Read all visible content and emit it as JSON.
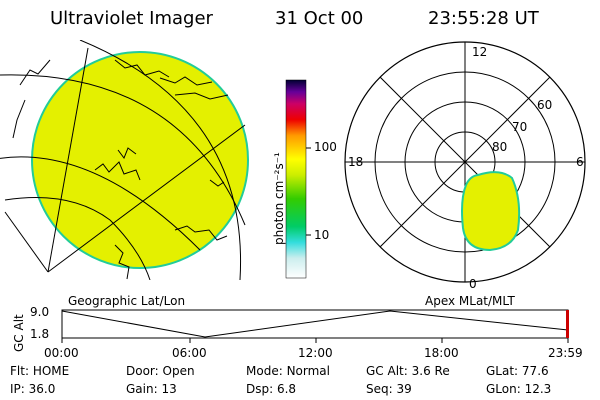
{
  "header": {
    "instrument": "Ultraviolet Imager",
    "date": "31 Oct 00",
    "time": "23:55:28 UT"
  },
  "colorbar": {
    "unit_label": "photon cm⁻²s⁻¹",
    "ticks": [
      "100",
      "10"
    ]
  },
  "map_labels": {
    "geographic": "Geographic Lat/Lon",
    "apex": "Apex  MLat/MLT"
  },
  "polar": {
    "mlt_labels": {
      "top": "12",
      "left": "18",
      "right": "6",
      "bottom": "0"
    },
    "lat_labels": [
      "60",
      "70",
      "80"
    ]
  },
  "altitude_plot": {
    "axis_label": "GC Alt",
    "ytick_high": "9.0",
    "ytick_low": "1.8",
    "time_ticks": [
      "00:00",
      "06:00",
      "12:00",
      "18:00",
      "23:59"
    ]
  },
  "info": {
    "row1": [
      {
        "label": "Flt:",
        "value": "HOME"
      },
      {
        "label": "Door:",
        "value": "Open"
      },
      {
        "label": "Mode:",
        "value": "Normal"
      },
      {
        "label": "GC Alt:",
        "value": "3.6 Re"
      },
      {
        "label": "GLat:",
        "value": "77.6"
      }
    ],
    "row2": [
      {
        "label": "IP:",
        "value": "36.0"
      },
      {
        "label": "Gain:",
        "value": "13"
      },
      {
        "label": "Dsp:",
        "value": "6.8"
      },
      {
        "label": "Seq:",
        "value": "39"
      },
      {
        "label": "GLon:",
        "value": "12.3"
      }
    ]
  },
  "colors": {
    "emission": "#e4f000",
    "emission_edge": "#22cc99",
    "marker": "#cc0000"
  }
}
